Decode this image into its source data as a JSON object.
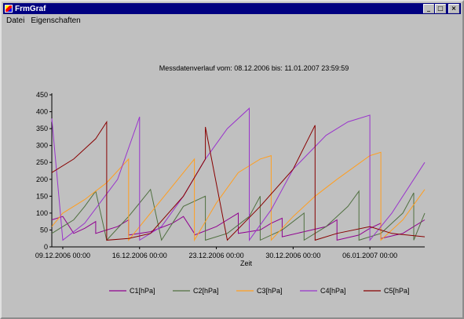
{
  "window": {
    "title": "FrmGraf"
  },
  "titlebar_buttons": {
    "minimize": "_",
    "maximize": "□",
    "close": "×"
  },
  "menu": [
    "Datei",
    "Eigenschaften"
  ],
  "chart_data": {
    "type": "line",
    "title": "Messdatenverlauf vom: 08.12.2006 bis: 11.01.2007 23:59:59",
    "xlabel": "Zeit",
    "ylabel": "",
    "ylim": [
      0,
      450
    ],
    "xlim": [
      "2006-12-08",
      "2007-01-11"
    ],
    "y_ticks": [
      0,
      50,
      100,
      150,
      200,
      250,
      300,
      350,
      400,
      450
    ],
    "x_ticks": [
      "09.12.2006 00:00",
      "16.12.2006 00:00",
      "23.12.2006 00:00",
      "30.12.2006 00:00",
      "06.01.2007 00:00"
    ],
    "grid": false,
    "legend": "bottom",
    "series": [
      {
        "name": "C1[hPa]",
        "color": "#900090",
        "x": [
          "2006-12-08",
          "2006-12-09",
          "2006-12-10",
          "2006-12-11",
          "2006-12-12",
          "2006-12-12",
          "2006-12-14",
          "2006-12-15",
          "2006-12-15",
          "2006-12-17",
          "2006-12-19",
          "2006-12-20",
          "2006-12-21",
          "2006-12-21",
          "2006-12-23",
          "2006-12-24",
          "2006-12-25",
          "2006-12-25",
          "2006-12-27",
          "2006-12-28",
          "2006-12-29",
          "2006-12-29",
          "2006-12-31",
          "2007-01-02",
          "2007-01-03",
          "2007-01-03",
          "2007-01-05",
          "2007-01-06",
          "2007-01-07",
          "2007-01-07",
          "2007-01-09",
          "2007-01-10",
          "2007-01-11"
        ],
        "values": [
          80,
          90,
          40,
          55,
          75,
          40,
          60,
          80,
          35,
          45,
          70,
          90,
          40,
          35,
          60,
          80,
          100,
          40,
          50,
          70,
          85,
          30,
          45,
          60,
          80,
          20,
          35,
          55,
          70,
          25,
          40,
          60,
          80
        ]
      },
      {
        "name": "C2[hPa]",
        "color": "#507040",
        "x": [
          "2006-12-08",
          "2006-12-09",
          "2006-12-10",
          "2006-12-11",
          "2006-12-12",
          "2006-12-13",
          "2006-12-13",
          "2006-12-15",
          "2006-12-16",
          "2006-12-17",
          "2006-12-18",
          "2006-12-18",
          "2006-12-20",
          "2006-12-22",
          "2006-12-22",
          "2006-12-24",
          "2006-12-26",
          "2006-12-27",
          "2006-12-27",
          "2006-12-29",
          "2006-12-31",
          "2006-12-31",
          "2007-01-02",
          "2007-01-04",
          "2007-01-05",
          "2007-01-05",
          "2007-01-07",
          "2007-01-09",
          "2007-01-10",
          "2007-01-10",
          "2007-01-11"
        ],
        "values": [
          40,
          60,
          80,
          120,
          165,
          20,
          20,
          90,
          130,
          170,
          20,
          20,
          120,
          150,
          20,
          40,
          90,
          150,
          20,
          50,
          100,
          20,
          60,
          120,
          165,
          20,
          40,
          100,
          160,
          20,
          100
        ]
      },
      {
        "name": "C3[hPa]",
        "color": "#ff9e20",
        "x": [
          "2006-12-08",
          "2006-12-09",
          "2006-12-11",
          "2006-12-13",
          "2006-12-15",
          "2006-12-15",
          "2006-12-17",
          "2006-12-19",
          "2006-12-21",
          "2006-12-21",
          "2006-12-23",
          "2006-12-25",
          "2006-12-27",
          "2006-12-28",
          "2006-12-28",
          "2006-12-30",
          "2007-01-01",
          "2007-01-03",
          "2007-01-06",
          "2007-01-07",
          "2007-01-07",
          "2007-01-09",
          "2007-01-11"
        ],
        "values": [
          60,
          100,
          140,
          190,
          260,
          20,
          100,
          180,
          260,
          20,
          130,
          220,
          260,
          270,
          20,
          90,
          150,
          200,
          270,
          280,
          20,
          80,
          170
        ]
      },
      {
        "name": "C4[hPa]",
        "color": "#9933cc",
        "x": [
          "2006-12-08",
          "2006-12-08",
          "2006-12-09",
          "2006-12-11",
          "2006-12-14",
          "2006-12-16",
          "2006-12-16",
          "2006-12-18",
          "2006-12-20",
          "2006-12-22",
          "2006-12-24",
          "2006-12-26",
          "2006-12-26",
          "2006-12-28",
          "2006-12-30",
          "2007-01-02",
          "2007-01-04",
          "2007-01-06",
          "2007-01-06",
          "2007-01-08",
          "2007-01-11"
        ],
        "values": [
          370,
          380,
          20,
          70,
          200,
          385,
          20,
          60,
          150,
          260,
          350,
          410,
          20,
          110,
          230,
          330,
          370,
          390,
          20,
          100,
          250
        ]
      },
      {
        "name": "C5[hPa]",
        "color": "#880000",
        "x": [
          "2006-12-08",
          "2006-12-10",
          "2006-12-12",
          "2006-12-13",
          "2006-12-13",
          "2006-12-15",
          "2006-12-17",
          "2006-12-20",
          "2006-12-22",
          "2006-12-22",
          "2006-12-24",
          "2006-12-27",
          "2006-12-30",
          "2007-01-01",
          "2007-01-01",
          "2007-01-03",
          "2007-01-06",
          "2007-01-08",
          "2007-01-11"
        ],
        "values": [
          220,
          260,
          320,
          370,
          20,
          25,
          40,
          150,
          260,
          355,
          20,
          120,
          230,
          360,
          20,
          40,
          60,
          40,
          30
        ]
      }
    ]
  }
}
